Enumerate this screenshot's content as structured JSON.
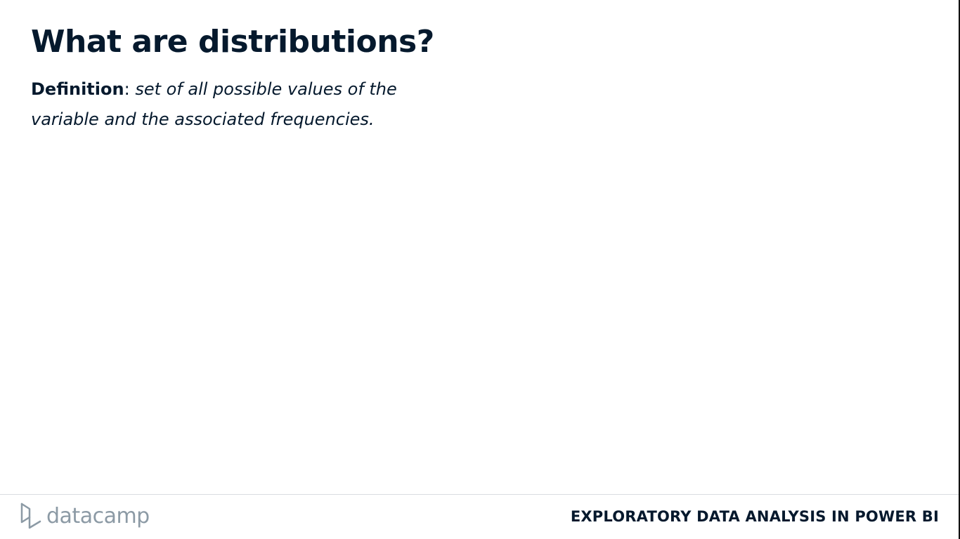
{
  "slide": {
    "title": "What are distributions?",
    "definition": {
      "term": "Definition",
      "separator": ":",
      "text": "set of all possible values of the variable and the associated frequencies."
    }
  },
  "footer": {
    "logo_icon": "datacamp-logo-icon",
    "logo_text": "datacamp",
    "course_name": "EXPLORATORY DATA ANALYSIS IN POWER BI"
  },
  "colors": {
    "text": "#05192d",
    "logo_gray": "#8c9aa5",
    "rule": "#d9dde1",
    "background": "#ffffff"
  }
}
